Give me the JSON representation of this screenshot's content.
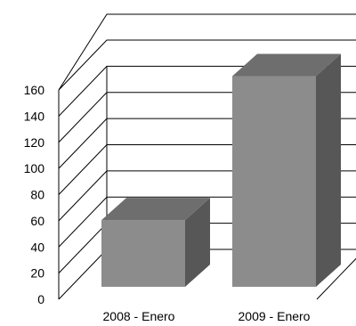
{
  "chart_data": {
    "type": "bar",
    "three_d": true,
    "categories": [
      "2008 - Enero",
      "2009 - Enero"
    ],
    "series": [
      {
        "values": [
          51,
          161
        ]
      }
    ],
    "y_ticks": [
      "0",
      "20",
      "40",
      "60",
      "80",
      "100",
      "120",
      "140",
      "160"
    ],
    "ylim": [
      0,
      160
    ],
    "grid": true,
    "legend": "none",
    "colors": {
      "bar_front": "#8c8c8c",
      "bar_side": "#575757",
      "bar_top": "#6e6e6e",
      "gridline": "#000000"
    }
  }
}
